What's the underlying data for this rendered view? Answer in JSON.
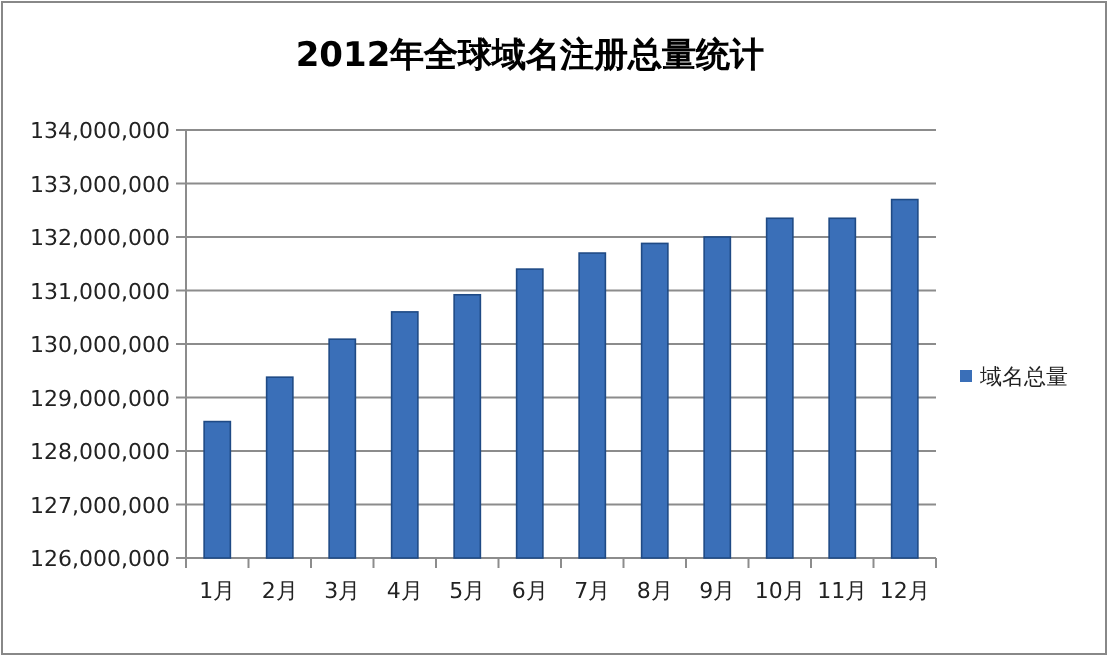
{
  "chart_data": {
    "type": "bar",
    "title": "2012年全球域名注册总量统计",
    "categories": [
      "1月",
      "2月",
      "3月",
      "4月",
      "5月",
      "6月",
      "7月",
      "8月",
      "9月",
      "10月",
      "11月",
      "12月"
    ],
    "series": [
      {
        "name": "域名总量",
        "color": "#3a6fb8",
        "values": [
          128550000,
          129380000,
          130090000,
          130600000,
          130920000,
          131400000,
          131700000,
          131880000,
          132000000,
          132350000,
          132350000,
          132700000
        ]
      }
    ],
    "ylim": [
      126000000,
      134000000
    ],
    "yticks": [
      {
        "value": 126000000,
        "label": "126,000,000"
      },
      {
        "value": 127000000,
        "label": "127,000,000"
      },
      {
        "value": 128000000,
        "label": "128,000,000"
      },
      {
        "value": 129000000,
        "label": "129,000,000"
      },
      {
        "value": 130000000,
        "label": "130,000,000"
      },
      {
        "value": 131000000,
        "label": "131,000,000"
      },
      {
        "value": 132000000,
        "label": "132,000,000"
      },
      {
        "value": 133000000,
        "label": "133,000,000"
      },
      {
        "value": 134000000,
        "label": "134,000,000"
      }
    ],
    "grid": "y",
    "legend": "right"
  }
}
